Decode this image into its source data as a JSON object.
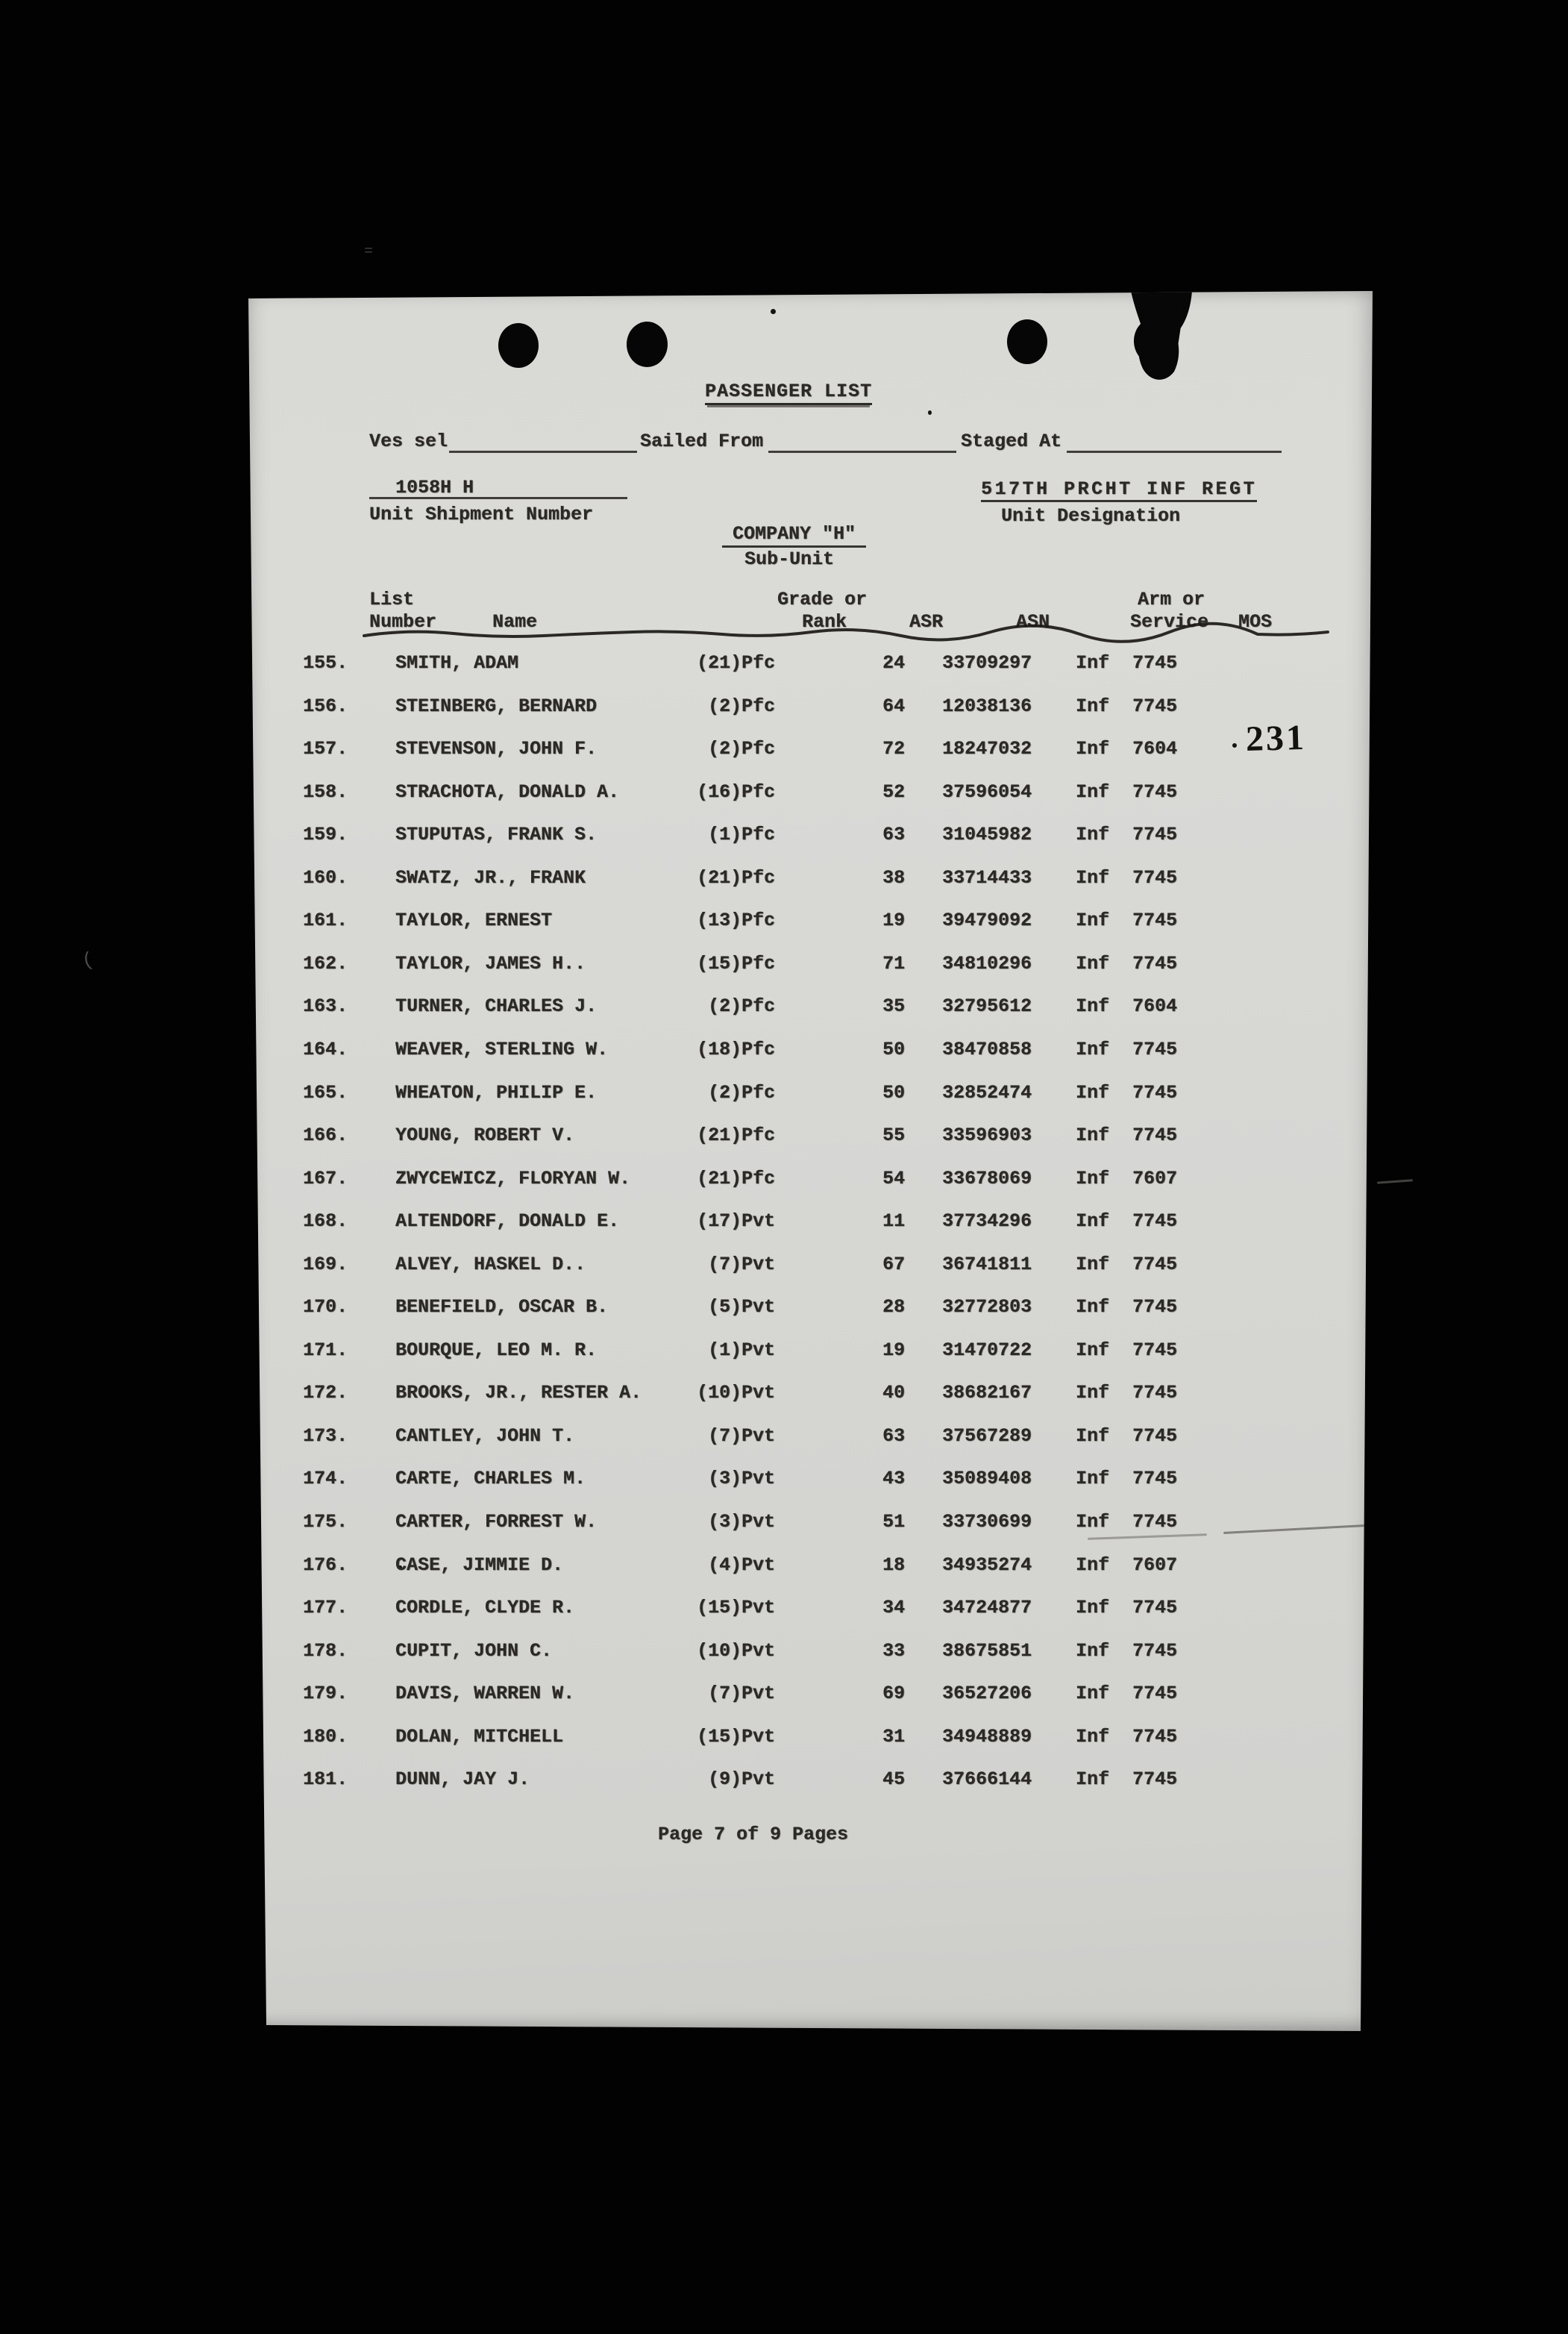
{
  "page": {
    "background_color": "#000000",
    "paper_color": "#d7d7d4",
    "ink_color": "#2b2926",
    "stamp_text": "231"
  },
  "header": {
    "title": "PASSENGER LIST",
    "vessel_label": "Ves sel",
    "sailed_label": "Sailed From",
    "staged_label": "Staged At",
    "unit_shipment_number": "1058H H",
    "unit_shipment_label": "Unit Shipment Number",
    "unit_designation": "517TH PRCHT INF REGT",
    "unit_designation_label": "Unit Designation",
    "sub_unit": "COMPANY \"H\"",
    "sub_unit_label": "Sub-Unit"
  },
  "table": {
    "header_row1": {
      "list": "List",
      "grade": "Grade or",
      "arm": "Arm or"
    },
    "header_row2": {
      "number": "Number",
      "name": "Name",
      "rank": "Rank",
      "asr": "ASR",
      "asn": "ASN",
      "service": "Service",
      "mos": "MOS"
    },
    "rows": [
      {
        "number": "155.",
        "name": "SMITH, ADAM",
        "grade": "(21)Pfc",
        "asr": "24",
        "asn": "33709297",
        "arm": "Inf",
        "mos": "7745"
      },
      {
        "number": "156.",
        "name": "STEINBERG, BERNARD",
        "grade": "(2)Pfc",
        "asr": "64",
        "asn": "12038136",
        "arm": "Inf",
        "mos": "7745"
      },
      {
        "number": "157.",
        "name": "STEVENSON, JOHN F.",
        "grade": "(2)Pfc",
        "asr": "72",
        "asn": "18247032",
        "arm": "Inf",
        "mos": "7604"
      },
      {
        "number": "158.",
        "name": "STRACHOTA, DONALD A.",
        "grade": "(16)Pfc",
        "asr": "52",
        "asn": "37596054",
        "arm": "Inf",
        "mos": "7745"
      },
      {
        "number": "159.",
        "name": "STUPUTAS, FRANK S.",
        "grade": "(1)Pfc",
        "asr": "63",
        "asn": "31045982",
        "arm": "Inf",
        "mos": "7745"
      },
      {
        "number": "160.",
        "name": "SWATZ, JR., FRANK",
        "grade": "(21)Pfc",
        "asr": "38",
        "asn": "33714433",
        "arm": "Inf",
        "mos": "7745"
      },
      {
        "number": "161.",
        "name": "TAYLOR, ERNEST",
        "grade": "(13)Pfc",
        "asr": "19",
        "asn": "39479092",
        "arm": "Inf",
        "mos": "7745"
      },
      {
        "number": "162.",
        "name": "TAYLOR, JAMES H..",
        "grade": "(15)Pfc",
        "asr": "71",
        "asn": "34810296",
        "arm": "Inf",
        "mos": "7745"
      },
      {
        "number": "163.",
        "name": "TURNER, CHARLES J.",
        "grade": "(2)Pfc",
        "asr": "35",
        "asn": "32795612",
        "arm": "Inf",
        "mos": "7604"
      },
      {
        "number": "164.",
        "name": "WEAVER, STERLING W.",
        "grade": "(18)Pfc",
        "asr": "50",
        "asn": "38470858",
        "arm": "Inf",
        "mos": "7745"
      },
      {
        "number": "165.",
        "name": "WHEATON, PHILIP E.",
        "grade": "(2)Pfc",
        "asr": "50",
        "asn": "32852474",
        "arm": "Inf",
        "mos": "7745"
      },
      {
        "number": "166.",
        "name": "YOUNG, ROBERT V.",
        "grade": "(21)Pfc",
        "asr": "55",
        "asn": "33596903",
        "arm": "Inf",
        "mos": "7745"
      },
      {
        "number": "167.",
        "name": "ZWYCEWICZ, FLORYAN W.",
        "grade": "(21)Pfc",
        "asr": "54",
        "asn": "33678069",
        "arm": "Inf",
        "mos": "7607"
      },
      {
        "number": "168.",
        "name": "ALTENDORF, DONALD E.",
        "grade": "(17)Pvt",
        "asr": "11",
        "asn": "37734296",
        "arm": "Inf",
        "mos": "7745"
      },
      {
        "number": "169.",
        "name": "ALVEY, HASKEL D..",
        "grade": "(7)Pvt",
        "asr": "67",
        "asn": "36741811",
        "arm": "Inf",
        "mos": "7745"
      },
      {
        "number": "170.",
        "name": "BENEFIELD, OSCAR B.",
        "grade": "(5)Pvt",
        "asr": "28",
        "asn": "32772803",
        "arm": "Inf",
        "mos": "7745"
      },
      {
        "number": "171.",
        "name": "BOURQUE, LEO M. R.",
        "grade": "(1)Pvt",
        "asr": "19",
        "asn": "31470722",
        "arm": "Inf",
        "mos": "7745"
      },
      {
        "number": "172.",
        "name": "BROOKS, JR., RESTER A.",
        "grade": "(10)Pvt",
        "asr": "40",
        "asn": "38682167",
        "arm": "Inf",
        "mos": "7745"
      },
      {
        "number": "173.",
        "name": "CANTLEY, JOHN T.",
        "grade": "(7)Pvt",
        "asr": "63",
        "asn": "37567289",
        "arm": "Inf",
        "mos": "7745"
      },
      {
        "number": "174.",
        "name": "CARTE, CHARLES M.",
        "grade": "(3)Pvt",
        "asr": "43",
        "asn": "35089408",
        "arm": "Inf",
        "mos": "7745"
      },
      {
        "number": "175.",
        "name": "CARTER, FORREST W.",
        "grade": "(3)Pvt",
        "asr": "51",
        "asn": "33730699",
        "arm": "Inf",
        "mos": "7745"
      },
      {
        "number": "176.",
        "name": "CASE, JIMMIE D.",
        "grade": "(4)Pvt",
        "asr": "18",
        "asn": "34935274",
        "arm": "Inf",
        "mos": "7607"
      },
      {
        "number": "177.",
        "name": "CORDLE, CLYDE R.",
        "grade": "(15)Pvt",
        "asr": "34",
        "asn": "34724877",
        "arm": "Inf",
        "mos": "7745"
      },
      {
        "number": "178.",
        "name": "CUPIT, JOHN C.",
        "grade": "(10)Pvt",
        "asr": "33",
        "asn": "38675851",
        "arm": "Inf",
        "mos": "7745"
      },
      {
        "number": "179.",
        "name": "DAVIS, WARREN W.",
        "grade": "(7)Pvt",
        "asr": "69",
        "asn": "36527206",
        "arm": "Inf",
        "mos": "7745"
      },
      {
        "number": "180.",
        "name": "DOLAN, MITCHELL",
        "grade": "(15)Pvt",
        "asr": "31",
        "asn": "34948889",
        "arm": "Inf",
        "mos": "7745"
      },
      {
        "number": "181.",
        "name": "DUNN, JAY J.",
        "grade": "(9)Pvt",
        "asr": "45",
        "asn": "37666144",
        "arm": "Inf",
        "mos": "7745"
      }
    ]
  },
  "footer": {
    "page_info": "Page 7 of 9 Pages"
  }
}
